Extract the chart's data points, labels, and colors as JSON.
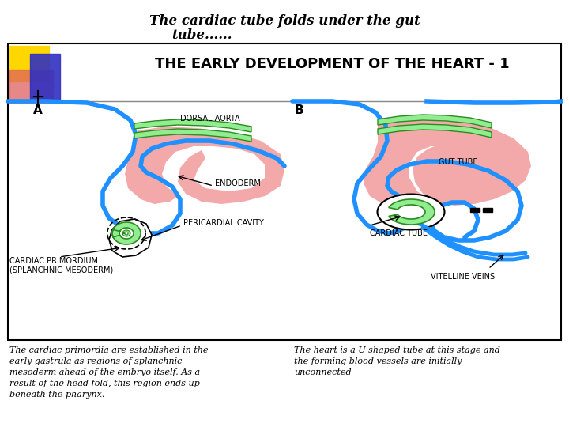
{
  "title_line1": "The cardiac tube folds under the gut",
  "title_line2": "tube......",
  "subtitle": "THE EARLY DEVELOPMENT OF THE HEART - 1",
  "bg_color": "#ffffff",
  "pink_color": "#F2A0A0",
  "green_fill": "#90EE90",
  "green_edge": "#2E8B22",
  "blue_color": "#1E90FF",
  "black_color": "#000000",
  "gray_color": "#888888",
  "label_A": "A",
  "label_B": "B",
  "label_dorsal_aorta": "DORSAL AORTA",
  "label_endoderm": "ENDODERM",
  "label_pericardial": "PERICARDIAL CAVITY",
  "label_cardiac_primordium": "CARDIAC PRIMORDIUM\n(SPLANCHNIC MESODERM)",
  "label_gut_tube": "GUT TUBE",
  "label_cardiac_tube": "CARDIAC TUBE",
  "label_vitelline": "VITELLINE VEINS",
  "caption_left": "The cardiac primordia are established in the\nearly gastrula as regions of splanchnic\nmesoderm ahead of the embryo itself. As a\nresult of the head fold, this region ends up\nbeneath the pharynx.",
  "caption_right": "The heart is a U-shaped tube at this stage and\nthe forming blood vessels are initially\nunconnected"
}
